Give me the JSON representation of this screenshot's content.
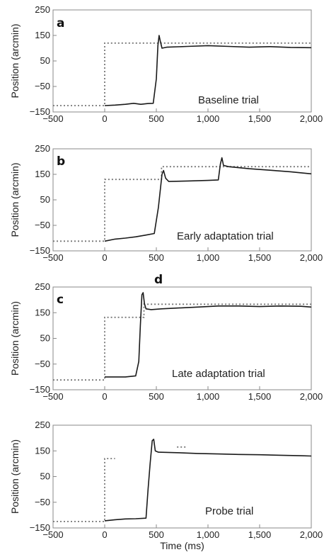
{
  "chart_data": [
    {
      "type": "line",
      "panel_label": "a",
      "annotation": "Baseline trial",
      "ylabel": "Position (arcmin)",
      "xlabel": "",
      "xlim": [
        -500,
        2000
      ],
      "ylim": [
        -150,
        250
      ],
      "xticks": [
        -500,
        0,
        500,
        1000,
        1500,
        2000
      ],
      "xtick_labels": [
        "−500",
        "0",
        "500",
        "1,000",
        "1,500",
        "2,000"
      ],
      "yticks": [
        -150,
        -50,
        50,
        150,
        250
      ],
      "ytick_labels": [
        "−150",
        "−50",
        "50",
        "150",
        "250"
      ],
      "series": [
        {
          "style": "dotted",
          "x": [
            -500,
            0,
            0,
            2000
          ],
          "y": [
            -125,
            -125,
            120,
            120
          ]
        },
        {
          "style": "solid",
          "x": [
            0,
            100,
            200,
            280,
            350,
            420,
            470,
            500,
            515,
            527,
            540,
            555,
            600,
            800,
            1000,
            1200,
            1400,
            1600,
            1800,
            2000
          ],
          "y": [
            -125,
            -123,
            -120,
            -116,
            -120,
            -117,
            -116,
            -20,
            110,
            150,
            125,
            100,
            104,
            107,
            110,
            107,
            104,
            106,
            103,
            102
          ]
        }
      ]
    },
    {
      "type": "line",
      "panel_label": "b",
      "annotation": "Early adaptation trial",
      "ylabel": "Position (arcmin)",
      "xlabel": "",
      "xlim": [
        -500,
        2000
      ],
      "ylim": [
        -150,
        250
      ],
      "xticks": [
        -500,
        0,
        500,
        1000,
        1500,
        2000
      ],
      "xtick_labels": [
        "−500",
        "0",
        "500",
        "1,000",
        "1,500",
        "2,000"
      ],
      "yticks": [
        -150,
        -50,
        50,
        150,
        250
      ],
      "ytick_labels": [
        "−150",
        "−50",
        "50",
        "150",
        "250"
      ],
      "series": [
        {
          "style": "dotted",
          "x": [
            -500,
            0,
            0,
            550,
            550,
            2000
          ],
          "y": [
            -112,
            -112,
            130,
            130,
            180,
            180
          ]
        },
        {
          "style": "solid",
          "x": [
            0,
            100,
            200,
            300,
            400,
            480,
            520,
            555,
            570,
            590,
            620,
            800,
            1000,
            1100,
            1120,
            1135,
            1150,
            1200,
            1400,
            1600,
            1800,
            2000
          ],
          "y": [
            -112,
            -104,
            -100,
            -95,
            -88,
            -82,
            20,
            150,
            165,
            135,
            122,
            124,
            126,
            128,
            190,
            215,
            185,
            180,
            172,
            166,
            160,
            152
          ]
        }
      ]
    },
    {
      "type": "line",
      "panel_label": "c",
      "annotation": "Late adaptation trial",
      "ylabel": "Position (arcmin)",
      "xlabel": "",
      "xlim": [
        -500,
        2000
      ],
      "ylim": [
        -150,
        250
      ],
      "xticks": [
        -500,
        0,
        500,
        1000,
        1500,
        2000
      ],
      "xtick_labels": [
        "−500",
        "0",
        "500",
        "1,000",
        "1,500",
        "2,000"
      ],
      "yticks": [
        -150,
        -50,
        50,
        150,
        250
      ],
      "ytick_labels": [
        "−150",
        "−50",
        "50",
        "150",
        "250"
      ],
      "series": [
        {
          "style": "dotted",
          "x": [
            -500,
            0,
            0,
            380,
            380,
            2000
          ],
          "y": [
            -112,
            -112,
            132,
            132,
            183,
            183
          ]
        },
        {
          "style": "solid",
          "x": [
            0,
            100,
            200,
            300,
            330,
            345,
            360,
            372,
            385,
            400,
            450,
            550,
            700,
            900,
            1100,
            1300,
            1500,
            1700,
            1900,
            2000
          ],
          "y": [
            -100,
            -100,
            -100,
            -96,
            -40,
            100,
            220,
            228,
            185,
            165,
            162,
            165,
            168,
            172,
            176,
            176,
            174,
            176,
            175,
            172
          ]
        }
      ]
    },
    {
      "type": "line",
      "panel_label": "d",
      "annotation": "Probe trial",
      "ylabel": "Position (arcmin)",
      "xlabel": "Time (ms)",
      "xlim": [
        -500,
        2000
      ],
      "ylim": [
        -150,
        250
      ],
      "xticks": [
        -500,
        0,
        500,
        1000,
        1500,
        2000
      ],
      "xtick_labels": [
        "−500",
        "0",
        "500",
        "1,000",
        "1,500",
        "2,000"
      ],
      "yticks": [
        -150,
        -50,
        50,
        150,
        250
      ],
      "ytick_labels": [
        "−150",
        "−50",
        "50",
        "150",
        "250"
      ],
      "series": [
        {
          "style": "dotted",
          "x": [
            -500,
            0,
            0,
            100
          ],
          "y": [
            -125,
            -125,
            120,
            120
          ]
        },
        {
          "style": "dotted",
          "x": [
            700,
            800
          ],
          "y": [
            165,
            165
          ]
        },
        {
          "style": "solid",
          "x": [
            0,
            100,
            200,
            300,
            400,
            420,
            440,
            460,
            475,
            490,
            520,
            700,
            900,
            1100,
            1300,
            1500,
            1700,
            1900,
            2000
          ],
          "y": [
            -122,
            -118,
            -115,
            -114,
            -112,
            0,
            100,
            190,
            195,
            150,
            145,
            143,
            140,
            138,
            136,
            135,
            133,
            131,
            130
          ]
        }
      ]
    }
  ]
}
